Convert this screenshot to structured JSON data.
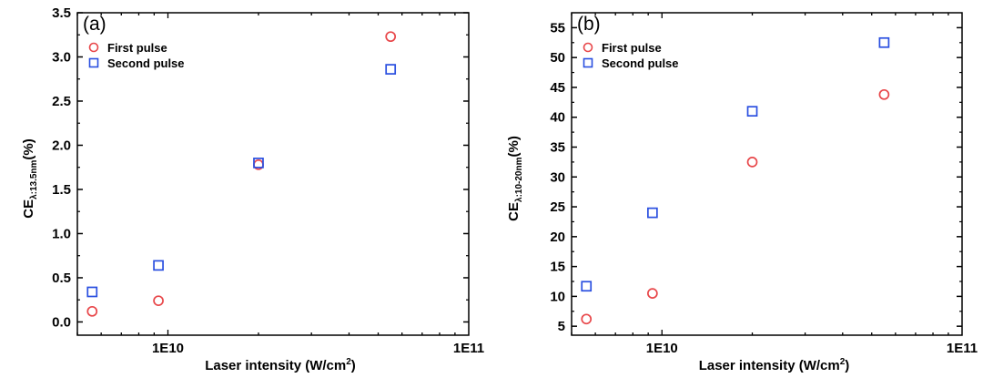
{
  "colors": {
    "first": "#e8474a",
    "second": "#2a4fe0",
    "axis": "#000000"
  },
  "chart_data": [
    {
      "type": "scatter",
      "panel": "(a)",
      "title": "",
      "ylabel_main": "CE",
      "ylabel_sub": "λ:13.5nm",
      "ylabel_tail": "(%)",
      "xlabel_main": "Laser intensity (W/cm",
      "xlabel_sup": "2",
      "xlabel_tail": ")",
      "xscale": "log",
      "xlim": [
        5000000000.0,
        100000000000.0
      ],
      "ylim": [
        -0.15,
        3.5
      ],
      "x_ticks": [
        {
          "value": 10000000000.0,
          "label": "1E10"
        },
        {
          "value": 100000000000.0,
          "label": "1E11"
        }
      ],
      "y_ticks": [
        {
          "value": 0.0,
          "label": "0.0"
        },
        {
          "value": 0.5,
          "label": "0.5"
        },
        {
          "value": 1.0,
          "label": "1.0"
        },
        {
          "value": 1.5,
          "label": "1.5"
        },
        {
          "value": 2.0,
          "label": "2.0"
        },
        {
          "value": 2.5,
          "label": "2.5"
        },
        {
          "value": 3.0,
          "label": "3.0"
        },
        {
          "value": 3.5,
          "label": "3.5"
        }
      ],
      "legend": "top-left",
      "series": [
        {
          "name": "First pulse",
          "marker": "circle",
          "x": [
            5600000000.0,
            9300000000.0,
            20000000000.0,
            55000000000.0
          ],
          "values": [
            0.12,
            0.24,
            1.78,
            3.23
          ]
        },
        {
          "name": "Second pulse",
          "marker": "square",
          "x": [
            5600000000.0,
            9300000000.0,
            20000000000.0,
            55000000000.0
          ],
          "values": [
            0.34,
            0.64,
            1.8,
            2.86
          ]
        }
      ]
    },
    {
      "type": "scatter",
      "panel": "(b)",
      "title": "",
      "ylabel_main": "CE",
      "ylabel_sub": "λ:10-20nm",
      "ylabel_tail": "(%)",
      "xlabel_main": "Laser intensity (W/cm",
      "xlabel_sup": "2",
      "xlabel_tail": ")",
      "xscale": "log",
      "xlim": [
        5000000000.0,
        100000000000.0
      ],
      "ylim": [
        3.5,
        57.5
      ],
      "x_ticks": [
        {
          "value": 10000000000.0,
          "label": "1E10"
        },
        {
          "value": 100000000000.0,
          "label": "1E11"
        }
      ],
      "y_ticks": [
        {
          "value": 5,
          "label": "5"
        },
        {
          "value": 10,
          "label": "10"
        },
        {
          "value": 15,
          "label": "15"
        },
        {
          "value": 20,
          "label": "20"
        },
        {
          "value": 25,
          "label": "25"
        },
        {
          "value": 30,
          "label": "30"
        },
        {
          "value": 35,
          "label": "35"
        },
        {
          "value": 40,
          "label": "40"
        },
        {
          "value": 45,
          "label": "45"
        },
        {
          "value": 50,
          "label": "50"
        },
        {
          "value": 55,
          "label": "55"
        }
      ],
      "legend": "top-left",
      "series": [
        {
          "name": "First pulse",
          "marker": "circle",
          "x": [
            5600000000.0,
            9300000000.0,
            20000000000.0,
            55000000000.0
          ],
          "values": [
            6.2,
            10.5,
            32.5,
            43.8
          ]
        },
        {
          "name": "Second pulse",
          "marker": "square",
          "x": [
            5600000000.0,
            9300000000.0,
            20000000000.0,
            55000000000.0
          ],
          "values": [
            11.7,
            24.0,
            41.0,
            52.5
          ]
        }
      ]
    }
  ]
}
